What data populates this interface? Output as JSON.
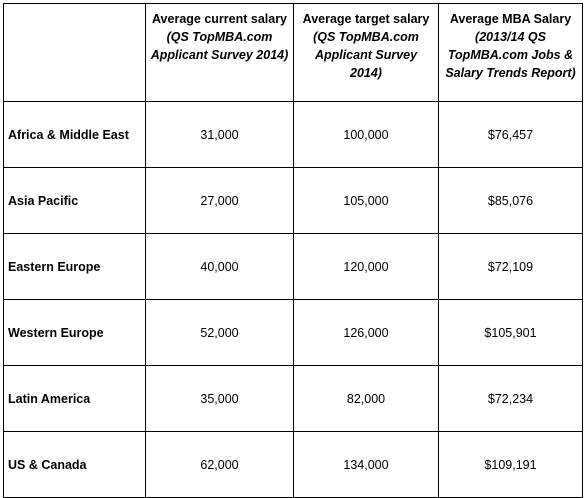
{
  "table": {
    "columns": [
      {
        "title": "Average current salary",
        "note": "(QS TopMBA.com Applicant Survey 2014)"
      },
      {
        "title": "Average target salary",
        "note": "(QS TopMBA.com Applicant Survey 2014)"
      },
      {
        "title": "Average MBA Salary",
        "note": "(2013/14 QS TopMBA.com Jobs & Salary Trends Report)"
      }
    ],
    "rows": [
      [
        "Africa & Middle East",
        "31,000",
        "100,000",
        "$76,457"
      ],
      [
        "Asia Pacific",
        "27,000",
        "105,000",
        "$85,076"
      ],
      [
        "Eastern Europe",
        "40,000",
        "120,000",
        "$72,109"
      ],
      [
        "Western Europe",
        "52,000",
        "126,000",
        "$105,901"
      ],
      [
        "Latin America",
        "35,000",
        "82,000",
        "$72,234"
      ],
      [
        "US & Canada",
        "62,000",
        "134,000",
        "$109,191"
      ]
    ]
  }
}
